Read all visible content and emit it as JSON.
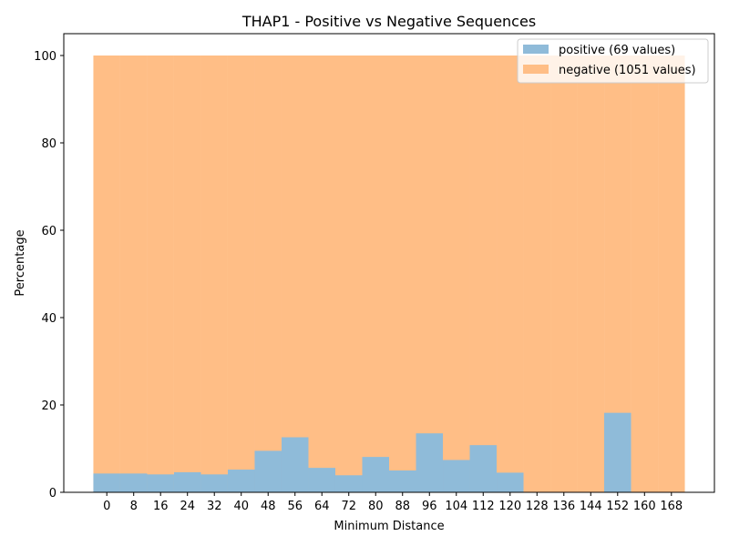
{
  "chart_data": {
    "type": "bar",
    "title": "THAP1 - Positive vs Negative Sequences",
    "xlabel": "Minimum Distance",
    "ylabel": "Percentage",
    "categories": [
      "0",
      "8",
      "16",
      "24",
      "32",
      "40",
      "48",
      "56",
      "64",
      "72",
      "80",
      "88",
      "96",
      "104",
      "112",
      "120",
      "128",
      "136",
      "144",
      "152",
      "160",
      "168"
    ],
    "x": [
      0,
      8,
      16,
      24,
      32,
      40,
      48,
      56,
      64,
      72,
      80,
      88,
      96,
      104,
      112,
      120,
      128,
      136,
      144,
      152,
      160,
      168
    ],
    "yticks": [
      0,
      20,
      40,
      60,
      80,
      100
    ],
    "ylim": [
      0,
      105
    ],
    "grid": false,
    "legend_position": "top-right",
    "series": [
      {
        "name": "negative (1051 values)",
        "color": "#ffbe86",
        "values": [
          100,
          100,
          100,
          100,
          100,
          100,
          100,
          100,
          100,
          100,
          100,
          100,
          100,
          100,
          100,
          100,
          100,
          100,
          100,
          100,
          100,
          100
        ]
      },
      {
        "name": "positive (69 values)",
        "color": "#8fbbd9",
        "values": [
          4.3,
          4.3,
          4.1,
          4.6,
          4.1,
          5.2,
          9.5,
          12.6,
          5.6,
          3.9,
          8.1,
          5.0,
          13.5,
          7.4,
          10.8,
          4.5,
          0,
          0,
          0,
          18.2,
          0,
          0
        ]
      }
    ]
  }
}
